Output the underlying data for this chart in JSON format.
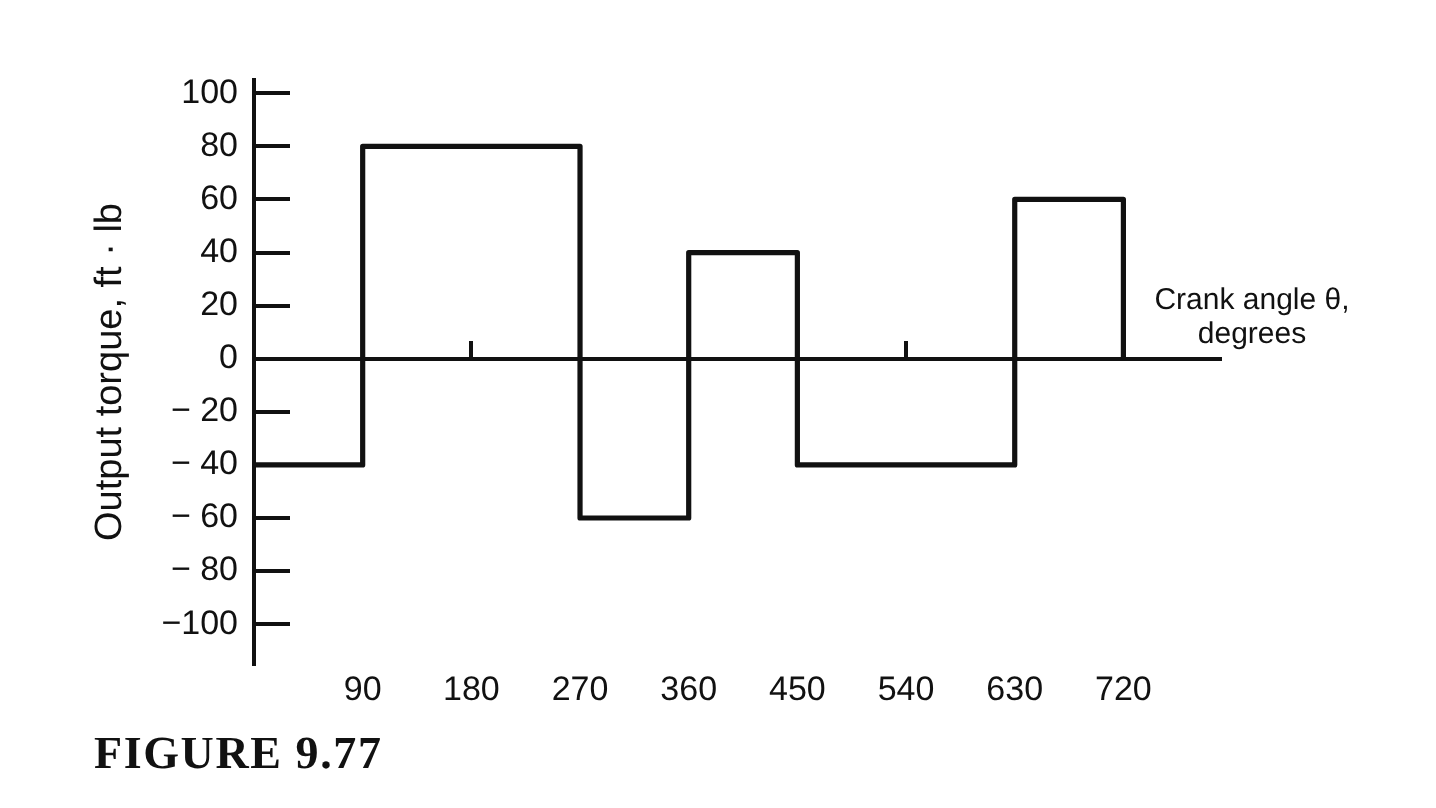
{
  "chart_data": {
    "type": "step",
    "xlabel": "Crank angle θ, degrees",
    "ylabel": "Output torque, ft · lb",
    "annotations": [
      "FIGURE 9.77"
    ],
    "x": [
      0,
      90,
      270,
      360,
      450,
      630,
      720
    ],
    "values": [
      -40,
      80,
      -60,
      40,
      -40,
      60,
      0
    ],
    "color": "#111111",
    "xlim": [
      0,
      800
    ],
    "xticks": [
      90,
      180,
      270,
      360,
      450,
      540,
      630,
      720
    ],
    "ylim": [
      -115,
      105
    ],
    "yticks": [
      100,
      80,
      60,
      40,
      20,
      0,
      {
        "value": -20,
        "label": "− 20"
      },
      {
        "value": -40,
        "label": "− 40"
      },
      {
        "value": -60,
        "label": "− 60"
      },
      {
        "value": -80,
        "label": "− 80"
      },
      {
        "value": -100,
        "label": "−100"
      }
    ],
    "marker": "none",
    "line_style": "solid"
  }
}
